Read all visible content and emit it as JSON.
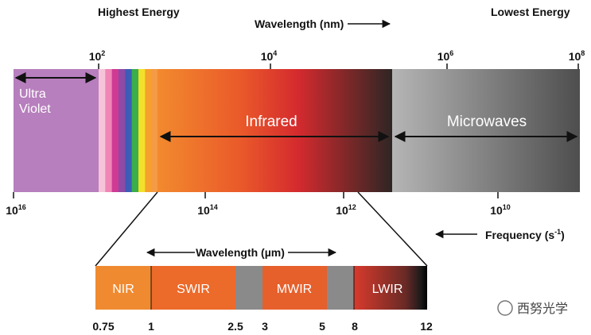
{
  "header": {
    "left": "Highest Energy",
    "center": "Wavelength (nm)",
    "right": "Lowest Energy"
  },
  "wavelength_ticks": [
    {
      "base": "10",
      "exp": "2"
    },
    {
      "base": "10",
      "exp": "4"
    },
    {
      "base": "10",
      "exp": "6"
    },
    {
      "base": "10",
      "exp": "8"
    }
  ],
  "frequency_ticks": [
    {
      "base": "10",
      "exp": "16"
    },
    {
      "base": "10",
      "exp": "14"
    },
    {
      "base": "10",
      "exp": "12"
    },
    {
      "base": "10",
      "exp": "10"
    }
  ],
  "frequency_label": {
    "text": "Frequency (s",
    "exp": "-1",
    "end": ")"
  },
  "bands": {
    "ultraviolet": [
      "Ultra",
      "Violet"
    ],
    "infrared": "Infrared",
    "microwaves": "Microwaves"
  },
  "detail": {
    "title": "Wavelength (µm)",
    "regions": [
      "NIR",
      "SWIR",
      "MWIR",
      "LWIR"
    ],
    "ticks": [
      "0.75",
      "1",
      "2.5",
      "3",
      "5",
      "8",
      "12"
    ]
  },
  "watermark": "西努光学"
}
